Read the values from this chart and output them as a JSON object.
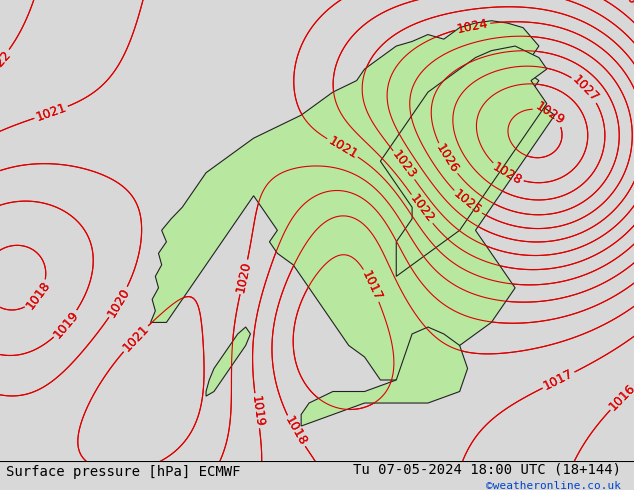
{
  "title_left": "Surface pressure [hPa] ECMWF",
  "title_right": "Tu 07-05-2024 18:00 UTC (18+144)",
  "credit": "©weatheronline.co.uk",
  "bg_color": "#d8d8d8",
  "land_color": "#b8e8a0",
  "border_color": "#222222",
  "isobar_color_red": "#dd0000",
  "isobar_color_black": "#000000",
  "isobar_color_blue": "#0000cc",
  "pressure_min": 1010,
  "pressure_max": 1031,
  "isobar_interval": 1,
  "label_fontsize": 9,
  "title_fontsize": 10,
  "credit_fontsize": 8,
  "figsize": [
    6.34,
    4.9
  ],
  "dpi": 100
}
